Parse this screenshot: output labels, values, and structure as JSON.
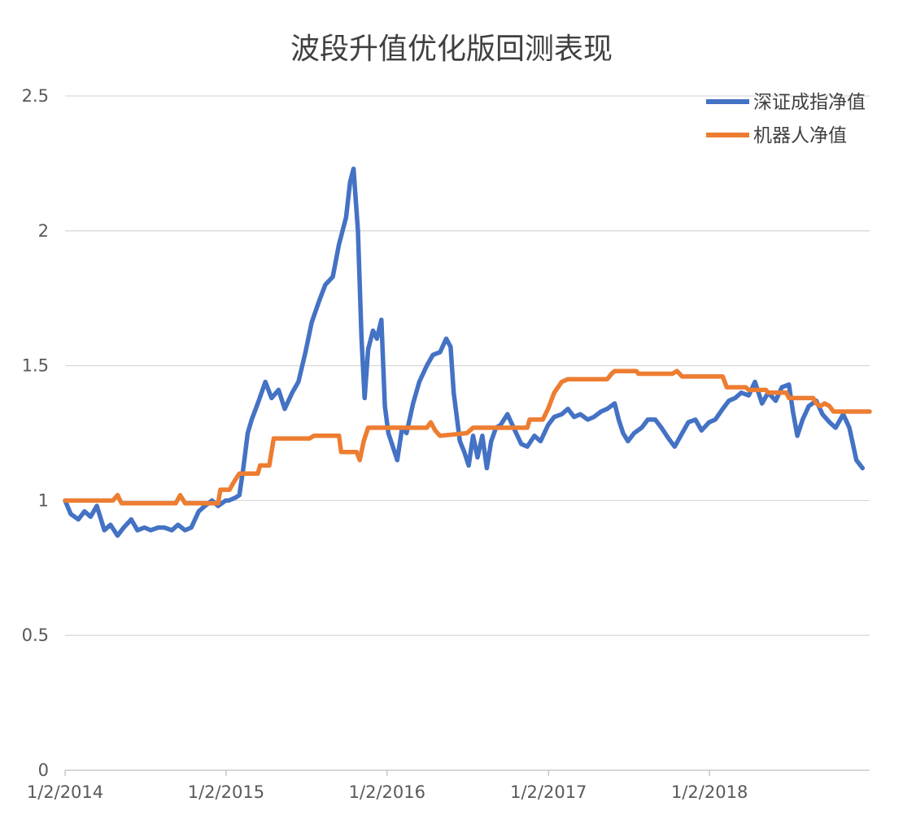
{
  "chart_data": {
    "type": "line",
    "title": "波段升值优化版回测表现",
    "xlabel": "",
    "ylabel": "",
    "ylim": [
      0,
      2.5
    ],
    "y_ticks": [
      0,
      0.5,
      1,
      1.5,
      2,
      2.5
    ],
    "y_tick_labels": [
      "0",
      "0.5",
      "1",
      "1.5",
      "2",
      "2.5"
    ],
    "x_range": [
      "2014-01-02",
      "2018-12-31"
    ],
    "x_tick_dates": [
      "2014-01-02",
      "2015-01-02",
      "2016-01-02",
      "2017-01-02",
      "2018-01-02"
    ],
    "x_tick_labels": [
      "1/2/2014",
      "1/2/2015",
      "1/2/2016",
      "1/2/2017",
      "1/2/2018"
    ],
    "grid": "horizontal",
    "legend_position": "top-right",
    "series": [
      {
        "name": "深证成指净值",
        "color": "#4472C4",
        "points": [
          [
            "2014-01-02",
            1.0
          ],
          [
            "2014-01-15",
            0.95
          ],
          [
            "2014-02-01",
            0.93
          ],
          [
            "2014-02-15",
            0.96
          ],
          [
            "2014-03-01",
            0.94
          ],
          [
            "2014-03-15",
            0.98
          ],
          [
            "2014-04-01",
            0.89
          ],
          [
            "2014-04-15",
            0.91
          ],
          [
            "2014-05-01",
            0.87
          ],
          [
            "2014-05-15",
            0.9
          ],
          [
            "2014-06-01",
            0.93
          ],
          [
            "2014-06-15",
            0.89
          ],
          [
            "2014-07-01",
            0.9
          ],
          [
            "2014-07-15",
            0.89
          ],
          [
            "2014-08-01",
            0.9
          ],
          [
            "2014-08-15",
            0.9
          ],
          [
            "2014-09-01",
            0.89
          ],
          [
            "2014-09-15",
            0.91
          ],
          [
            "2014-10-01",
            0.89
          ],
          [
            "2014-10-15",
            0.9
          ],
          [
            "2014-11-01",
            0.96
          ],
          [
            "2014-11-15",
            0.98
          ],
          [
            "2014-12-01",
            1.0
          ],
          [
            "2014-12-15",
            0.98
          ],
          [
            "2015-01-01",
            1.0
          ],
          [
            "2015-01-08",
            1.0
          ],
          [
            "2015-01-22",
            1.01
          ],
          [
            "2015-02-01",
            1.02
          ],
          [
            "2015-02-10",
            1.12
          ],
          [
            "2015-02-20",
            1.25
          ],
          [
            "2015-03-01",
            1.3
          ],
          [
            "2015-03-15",
            1.36
          ],
          [
            "2015-04-01",
            1.44
          ],
          [
            "2015-04-15",
            1.38
          ],
          [
            "2015-05-01",
            1.41
          ],
          [
            "2015-05-15",
            1.34
          ],
          [
            "2015-06-01",
            1.4
          ],
          [
            "2015-06-15",
            1.44
          ],
          [
            "2015-07-01",
            1.55
          ],
          [
            "2015-07-15",
            1.66
          ],
          [
            "2015-08-01",
            1.74
          ],
          [
            "2015-08-15",
            1.8
          ],
          [
            "2015-09-01",
            1.83
          ],
          [
            "2015-09-15",
            1.95
          ],
          [
            "2015-10-01",
            2.05
          ],
          [
            "2015-10-10",
            2.18
          ],
          [
            "2015-10-18",
            2.23
          ],
          [
            "2015-10-28",
            2.0
          ],
          [
            "2015-11-05",
            1.6
          ],
          [
            "2015-11-12",
            1.38
          ],
          [
            "2015-11-20",
            1.56
          ],
          [
            "2015-12-01",
            1.63
          ],
          [
            "2015-12-10",
            1.6
          ],
          [
            "2015-12-20",
            1.67
          ],
          [
            "2015-12-28",
            1.35
          ],
          [
            "2016-01-05",
            1.25
          ],
          [
            "2016-01-15",
            1.2
          ],
          [
            "2016-01-25",
            1.15
          ],
          [
            "2016-02-05",
            1.27
          ],
          [
            "2016-02-15",
            1.25
          ],
          [
            "2016-03-01",
            1.36
          ],
          [
            "2016-03-15",
            1.44
          ],
          [
            "2016-04-01",
            1.5
          ],
          [
            "2016-04-15",
            1.54
          ],
          [
            "2016-05-01",
            1.55
          ],
          [
            "2016-05-15",
            1.6
          ],
          [
            "2016-05-25",
            1.57
          ],
          [
            "2016-06-01",
            1.4
          ],
          [
            "2016-06-15",
            1.22
          ],
          [
            "2016-06-25",
            1.18
          ],
          [
            "2016-07-05",
            1.13
          ],
          [
            "2016-07-15",
            1.24
          ],
          [
            "2016-07-25",
            1.16
          ],
          [
            "2016-08-05",
            1.24
          ],
          [
            "2016-08-15",
            1.12
          ],
          [
            "2016-08-25",
            1.22
          ],
          [
            "2016-09-05",
            1.27
          ],
          [
            "2016-09-15",
            1.28
          ],
          [
            "2016-10-01",
            1.32
          ],
          [
            "2016-10-15",
            1.27
          ],
          [
            "2016-11-01",
            1.21
          ],
          [
            "2016-11-15",
            1.2
          ],
          [
            "2016-12-01",
            1.24
          ],
          [
            "2016-12-15",
            1.22
          ],
          [
            "2017-01-01",
            1.28
          ],
          [
            "2017-01-15",
            1.31
          ],
          [
            "2017-02-01",
            1.32
          ],
          [
            "2017-02-15",
            1.34
          ],
          [
            "2017-03-01",
            1.31
          ],
          [
            "2017-03-15",
            1.32
          ],
          [
            "2017-04-01",
            1.3
          ],
          [
            "2017-04-15",
            1.31
          ],
          [
            "2017-05-01",
            1.33
          ],
          [
            "2017-05-15",
            1.34
          ],
          [
            "2017-06-01",
            1.36
          ],
          [
            "2017-06-10",
            1.3
          ],
          [
            "2017-06-20",
            1.25
          ],
          [
            "2017-07-01",
            1.22
          ],
          [
            "2017-07-15",
            1.25
          ],
          [
            "2017-08-01",
            1.27
          ],
          [
            "2017-08-15",
            1.3
          ],
          [
            "2017-09-01",
            1.3
          ],
          [
            "2017-09-15",
            1.27
          ],
          [
            "2017-10-01",
            1.23
          ],
          [
            "2017-10-15",
            1.2
          ],
          [
            "2017-11-01",
            1.25
          ],
          [
            "2017-11-15",
            1.29
          ],
          [
            "2017-12-01",
            1.3
          ],
          [
            "2017-12-15",
            1.26
          ],
          [
            "2018-01-01",
            1.29
          ],
          [
            "2018-01-15",
            1.3
          ],
          [
            "2018-02-01",
            1.34
          ],
          [
            "2018-02-15",
            1.37
          ],
          [
            "2018-03-01",
            1.38
          ],
          [
            "2018-03-15",
            1.4
          ],
          [
            "2018-04-01",
            1.39
          ],
          [
            "2018-04-15",
            1.44
          ],
          [
            "2018-05-01",
            1.36
          ],
          [
            "2018-05-15",
            1.4
          ],
          [
            "2018-06-01",
            1.37
          ],
          [
            "2018-06-15",
            1.42
          ],
          [
            "2018-07-01",
            1.43
          ],
          [
            "2018-07-10",
            1.33
          ],
          [
            "2018-07-20",
            1.24
          ],
          [
            "2018-08-01",
            1.3
          ],
          [
            "2018-08-15",
            1.35
          ],
          [
            "2018-09-01",
            1.37
          ],
          [
            "2018-09-15",
            1.32
          ],
          [
            "2018-10-01",
            1.29
          ],
          [
            "2018-10-15",
            1.27
          ],
          [
            "2018-11-01",
            1.32
          ],
          [
            "2018-11-15",
            1.27
          ],
          [
            "2018-12-01",
            1.15
          ],
          [
            "2018-12-15",
            1.12
          ]
        ]
      },
      {
        "name": "机器人净值",
        "color": "#ED7D31",
        "points": [
          [
            "2014-01-02",
            1.0
          ],
          [
            "2014-04-20",
            1.0
          ],
          [
            "2014-05-01",
            1.02
          ],
          [
            "2014-05-10",
            0.99
          ],
          [
            "2014-09-10",
            0.99
          ],
          [
            "2014-09-20",
            1.02
          ],
          [
            "2014-10-01",
            0.99
          ],
          [
            "2014-12-15",
            0.99
          ],
          [
            "2014-12-20",
            1.04
          ],
          [
            "2015-01-10",
            1.04
          ],
          [
            "2015-01-20",
            1.07
          ],
          [
            "2015-02-01",
            1.1
          ],
          [
            "2015-03-15",
            1.1
          ],
          [
            "2015-03-20",
            1.13
          ],
          [
            "2015-04-10",
            1.13
          ],
          [
            "2015-04-20",
            1.23
          ],
          [
            "2015-07-10",
            1.23
          ],
          [
            "2015-07-20",
            1.24
          ],
          [
            "2015-09-15",
            1.24
          ],
          [
            "2015-09-20",
            1.18
          ],
          [
            "2015-10-25",
            1.18
          ],
          [
            "2015-11-01",
            1.15
          ],
          [
            "2015-11-10",
            1.22
          ],
          [
            "2015-11-20",
            1.27
          ],
          [
            "2016-04-01",
            1.27
          ],
          [
            "2016-04-10",
            1.29
          ],
          [
            "2016-04-20",
            1.26
          ],
          [
            "2016-05-01",
            1.24
          ],
          [
            "2016-07-01",
            1.25
          ],
          [
            "2016-07-15",
            1.27
          ],
          [
            "2016-11-15",
            1.27
          ],
          [
            "2016-11-20",
            1.3
          ],
          [
            "2016-12-20",
            1.3
          ],
          [
            "2017-01-01",
            1.34
          ],
          [
            "2017-01-15",
            1.4
          ],
          [
            "2017-02-01",
            1.44
          ],
          [
            "2017-02-15",
            1.45
          ],
          [
            "2017-05-15",
            1.45
          ],
          [
            "2017-05-25",
            1.47
          ],
          [
            "2017-06-01",
            1.48
          ],
          [
            "2017-07-20",
            1.48
          ],
          [
            "2017-07-25",
            1.47
          ],
          [
            "2017-08-05",
            1.47
          ],
          [
            "2017-08-15",
            1.47
          ],
          [
            "2017-10-10",
            1.47
          ],
          [
            "2017-10-20",
            1.48
          ],
          [
            "2017-11-01",
            1.46
          ],
          [
            "2018-02-01",
            1.46
          ],
          [
            "2018-02-10",
            1.42
          ],
          [
            "2018-03-25",
            1.42
          ],
          [
            "2018-04-01",
            1.41
          ],
          [
            "2018-05-10",
            1.41
          ],
          [
            "2018-05-15",
            1.4
          ],
          [
            "2018-06-25",
            1.4
          ],
          [
            "2018-07-01",
            1.38
          ],
          [
            "2018-08-25",
            1.38
          ],
          [
            "2018-09-01",
            1.36
          ],
          [
            "2018-09-10",
            1.35
          ],
          [
            "2018-09-20",
            1.36
          ],
          [
            "2018-10-01",
            1.35
          ],
          [
            "2018-10-10",
            1.33
          ],
          [
            "2018-12-31",
            1.33
          ]
        ]
      }
    ]
  }
}
